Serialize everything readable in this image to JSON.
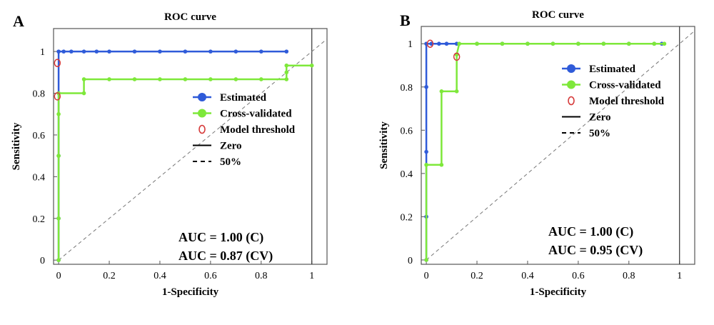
{
  "chart_data": [
    {
      "type": "line",
      "panel_label": "A",
      "title": "ROC curve",
      "xlabel": "1-Specificity",
      "ylabel": "Sensitivity",
      "xlim": [
        -0.02,
        1.06
      ],
      "ylim": [
        -0.02,
        1.11
      ],
      "x_ticks": [
        "0",
        "0.2",
        "0.4",
        "0.6",
        "0.8",
        "1"
      ],
      "y_ticks": [
        "0",
        "0.2",
        "0.4",
        "0.6",
        "0.8",
        "1"
      ],
      "grid": false,
      "legend_position": "center-right",
      "legend": [
        "Estimated",
        "Cross-validated",
        "Model threshold",
        "Zero",
        "50%"
      ],
      "colors": {
        "estimated": "#2f5bd9",
        "cross_validated": "#7ee83a",
        "threshold": "#d63a3a"
      },
      "series": [
        {
          "name": "Estimated",
          "x": [
            0,
            0,
            0,
            0,
            0,
            0.02,
            0.05,
            0.1,
            0.15,
            0.2,
            0.3,
            0.4,
            0.5,
            0.6,
            0.7,
            0.8,
            0.9
          ],
          "y": [
            0,
            0.2,
            0.5,
            0.8,
            1.0,
            1.0,
            1.0,
            1.0,
            1.0,
            1.0,
            1.0,
            1.0,
            1.0,
            1.0,
            1.0,
            1.0,
            1.0
          ]
        },
        {
          "name": "Cross-validated",
          "x": [
            0,
            0,
            0,
            0,
            0,
            0.1,
            0.1,
            0.2,
            0.3,
            0.4,
            0.5,
            0.6,
            0.7,
            0.8,
            0.9,
            0.9,
            0.9,
            1.0
          ],
          "y": [
            0,
            0.2,
            0.5,
            0.7,
            0.8,
            0.8,
            0.867,
            0.867,
            0.867,
            0.867,
            0.867,
            0.867,
            0.867,
            0.867,
            0.867,
            0.9,
            0.933,
            0.933
          ]
        }
      ],
      "threshold_points": [
        {
          "x": -0.005,
          "y": 0.945
        },
        {
          "x": -0.005,
          "y": 0.785
        }
      ],
      "zero_line": {
        "x": 1.0
      },
      "annotations": [
        "AUC = 1.00 (C)",
        "AUC = 0.87 (CV)"
      ]
    },
    {
      "type": "line",
      "panel_label": "B",
      "title": "ROC curve",
      "xlabel": "1-Specificity",
      "ylabel": "Sensitivity",
      "xlim": [
        -0.02,
        1.06
      ],
      "ylim": [
        -0.02,
        1.08
      ],
      "x_ticks": [
        "0",
        "0.2",
        "0.4",
        "0.6",
        "0.8",
        "1"
      ],
      "y_ticks": [
        "0",
        "0.2",
        "0.4",
        "0.6",
        "0.8",
        "1"
      ],
      "grid": false,
      "legend_position": "top-right",
      "legend": [
        "Estimated",
        "Cross-validated",
        "Model threshold",
        "Zero",
        "50%"
      ],
      "colors": {
        "estimated": "#2f5bd9",
        "cross_validated": "#7ee83a",
        "threshold": "#d63a3a"
      },
      "series": [
        {
          "name": "Estimated",
          "x": [
            0,
            0,
            0,
            0,
            0,
            0.02,
            0.05,
            0.08,
            0.12,
            0.2,
            0.3,
            0.4,
            0.5,
            0.6,
            0.7,
            0.8,
            0.9,
            0.93
          ],
          "y": [
            0,
            0.2,
            0.5,
            0.8,
            1.0,
            1.0,
            1.0,
            1.0,
            1.0,
            1.0,
            1.0,
            1.0,
            1.0,
            1.0,
            1.0,
            1.0,
            1.0,
            1.0
          ]
        },
        {
          "name": "Cross-validated",
          "x": [
            0,
            0,
            0.06,
            0.06,
            0.12,
            0.12,
            0.13,
            0.2,
            0.3,
            0.4,
            0.5,
            0.6,
            0.7,
            0.8,
            0.9,
            0.94
          ],
          "y": [
            0,
            0.44,
            0.44,
            0.78,
            0.78,
            0.95,
            1.0,
            1.0,
            1.0,
            1.0,
            1.0,
            1.0,
            1.0,
            1.0,
            1.0,
            1.0
          ]
        }
      ],
      "threshold_points": [
        {
          "x": 0.015,
          "y": 1.0
        },
        {
          "x": 0.12,
          "y": 0.94
        }
      ],
      "zero_line": {
        "x": 1.0
      },
      "annotations": [
        "AUC = 1.00 (C)",
        "AUC = 0.95 (CV)"
      ]
    }
  ]
}
